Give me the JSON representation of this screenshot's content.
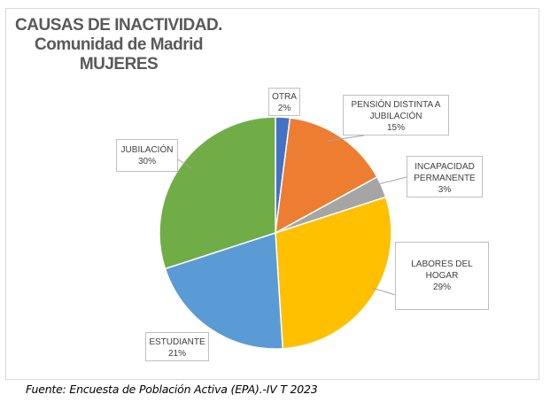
{
  "chart_data": {
    "type": "pie",
    "title_lines": [
      "CAUSAS DE INACTIVIDAD.",
      "Comunidad de Madrid",
      "MUJERES"
    ],
    "slices": [
      {
        "label": "OTRA",
        "value": 2,
        "pct_text": "2%",
        "color": "#4472c4"
      },
      {
        "label": "PENSIÓN DISTINTA A JUBILACIÓN",
        "label_lines": [
          "PENSIÓN DISTINTA A",
          "JUBILACIÓN"
        ],
        "value": 15,
        "pct_text": "15%",
        "color": "#ed7d31"
      },
      {
        "label": "INCAPACIDAD PERMANENTE",
        "label_lines": [
          "INCAPACIDAD",
          "PERMANENTE"
        ],
        "value": 3,
        "pct_text": "3%",
        "color": "#a5a5a5"
      },
      {
        "label": "LABORES DEL HOGAR",
        "label_lines": [
          "LABORES DEL",
          "HOGAR"
        ],
        "value": 29,
        "pct_text": "29%",
        "color": "#ffc000"
      },
      {
        "label": "ESTUDIANTE",
        "value": 21,
        "pct_text": "21%",
        "color": "#5b9bd5"
      },
      {
        "label": "JUBILACIÓN",
        "value": 30,
        "pct_text": "30%",
        "color": "#70ad47"
      }
    ],
    "legend": "none",
    "grid": false
  },
  "footer": {
    "source": "Fuente: Encuesta de Población Activa (EPA).-IV T 2023"
  }
}
